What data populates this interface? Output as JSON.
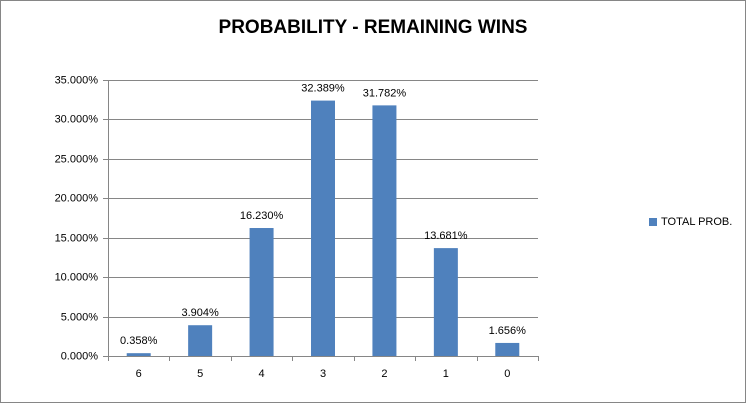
{
  "chart_data": {
    "type": "bar",
    "title": "PROBABILITY - REMAINING WINS",
    "categories": [
      "6",
      "5",
      "4",
      "3",
      "2",
      "1",
      "0"
    ],
    "series": [
      {
        "name": "TOTAL PROB.",
        "color": "#4f81bd",
        "values": [
          0.358,
          3.904,
          16.23,
          32.389,
          31.782,
          13.681,
          1.656
        ],
        "value_labels": [
          "0.358%",
          "3.904%",
          "16.230%",
          "32.389%",
          "31.782%",
          "13.681%",
          "1.656%"
        ]
      }
    ],
    "ylim": [
      0,
      35
    ],
    "yticks": [
      {
        "value": 0,
        "label": "0.000%"
      },
      {
        "value": 5,
        "label": "5.000%"
      },
      {
        "value": 10,
        "label": "10.000%"
      },
      {
        "value": 15,
        "label": "15.000%"
      },
      {
        "value": 20,
        "label": "20.000%"
      },
      {
        "value": 25,
        "label": "25.000%"
      },
      {
        "value": 30,
        "label": "30.000%"
      },
      {
        "value": 35,
        "label": "35.000%"
      }
    ],
    "grid": true,
    "legend": "right"
  }
}
